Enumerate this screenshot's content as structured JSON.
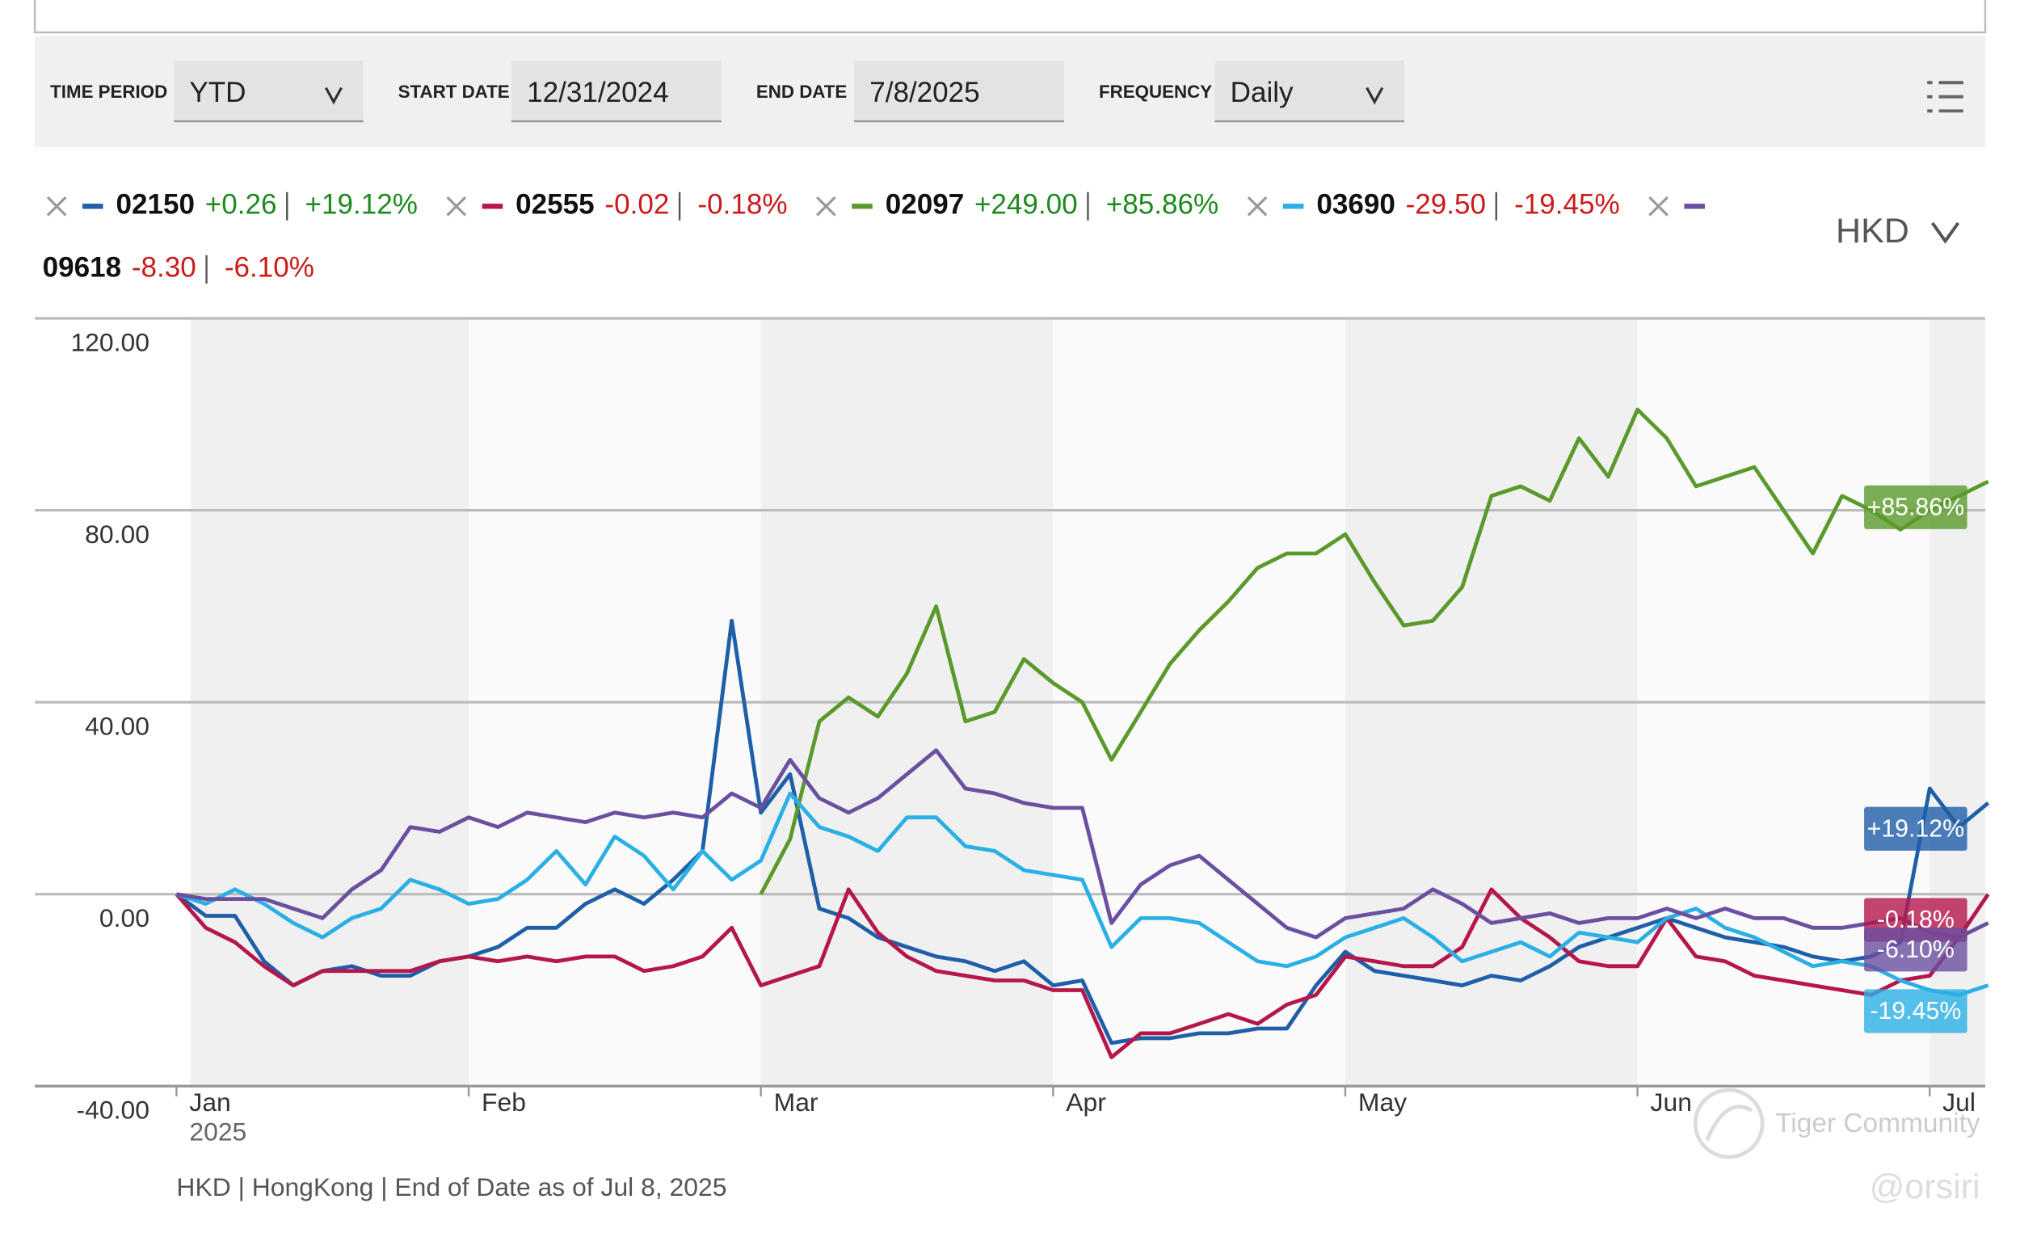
{
  "controls": [
    {
      "label": "TIME PERIOD",
      "value": "YTD"
    },
    {
      "label": "START DATE",
      "value": "12/31/2024"
    },
    {
      "label": "END DATE",
      "value": "7/8/2025"
    },
    {
      "label": "FREQUENCY",
      "value": "Daily"
    }
  ],
  "currency": "HKD",
  "footer": "HKD | HongKong | End of Date as of Jul 8, 2025",
  "watermark": [
    "Tiger Community",
    "@orsiri"
  ],
  "chart_data": {
    "type": "line",
    "x": [
      0,
      0.1,
      0.2,
      0.3,
      0.4,
      0.5,
      0.6,
      0.7,
      0.8,
      0.9,
      1,
      1.1,
      1.2,
      1.3,
      1.4,
      1.5,
      1.6,
      1.7,
      1.8,
      1.9,
      2,
      2.1,
      2.2,
      2.3,
      2.4,
      2.5,
      2.6,
      2.7,
      2.8,
      2.9,
      3,
      3.1,
      3.2,
      3.3,
      3.4,
      3.5,
      3.6,
      3.7,
      3.8,
      3.9,
      4,
      4.1,
      4.2,
      4.3,
      4.4,
      4.5,
      4.6,
      4.7,
      4.8,
      4.9,
      5,
      5.1,
      5.2,
      5.3,
      5.4,
      5.5,
      5.6,
      5.7,
      5.8,
      5.9,
      6,
      6.1,
      6.2
    ],
    "xlim": [
      0,
      6.19
    ],
    "xticks": [
      {
        "value": 0,
        "label": "Jan"
      },
      {
        "value": 1,
        "label": "Feb"
      },
      {
        "value": 2,
        "label": "Mar"
      },
      {
        "value": 3,
        "label": "Apr"
      },
      {
        "value": 4,
        "label": "May"
      },
      {
        "value": 5,
        "label": "Jun"
      },
      {
        "value": 6,
        "label": "Jul"
      }
    ],
    "year_label": "2025",
    "ylim": [
      -40,
      120
    ],
    "yticks": [
      {
        "value": -40,
        "label": "-40.00"
      },
      {
        "value": 0,
        "label": "0.00"
      },
      {
        "value": 40,
        "label": "40.00"
      },
      {
        "value": 80,
        "label": "80.00"
      },
      {
        "value": 120,
        "label": "120.00"
      }
    ],
    "grid": true,
    "series": [
      {
        "name": "02150",
        "color": "#1f5fa8",
        "change": "+0.26",
        "change_pct": "+19.12%",
        "change_color": "#1e8a1e",
        "values": [
          0,
          -4.5,
          -4.5,
          -14,
          -19,
          -16,
          -15,
          -17,
          -17,
          -14,
          -13,
          -11,
          -7,
          -7,
          -2,
          1,
          -2,
          3,
          9,
          57,
          17,
          25,
          -3,
          -5,
          -9,
          -11,
          -13,
          -14,
          -16,
          -14,
          -19,
          -18,
          -31,
          -30,
          -30,
          -29,
          -29,
          -28,
          -28,
          -19,
          -12,
          -16,
          -17,
          -18,
          -19,
          -17,
          -18,
          -15,
          -11,
          -9,
          -7,
          -5,
          -7,
          -9,
          -10,
          -11,
          -13,
          -14,
          -13,
          -10,
          22,
          14,
          19
        ]
      },
      {
        "name": "02555",
        "color": "#b5174b",
        "change": "-0.02",
        "change_pct": "-0.18%",
        "change_color": "#cc1a1a",
        "values": [
          0,
          -7,
          -10,
          -15,
          -19,
          -16,
          -16,
          -16,
          -16,
          -14,
          -13,
          -14,
          -13,
          -14,
          -13,
          -13,
          -16,
          -15,
          -13,
          -7,
          -19,
          -17,
          -15,
          1,
          -8,
          -13,
          -16,
          -17,
          -18,
          -18,
          -20,
          -20,
          -34,
          -29,
          -29,
          -27,
          -25,
          -27,
          -23,
          -21,
          -13,
          -14,
          -15,
          -15,
          -11,
          1,
          -5,
          -9,
          -14,
          -15,
          -15,
          -5,
          -13,
          -14,
          -17,
          -18,
          -19,
          -20,
          -21,
          -18,
          -17,
          -9,
          0
        ]
      },
      {
        "name": "02097",
        "color": "#5a9a2b",
        "change": "+249.00",
        "change_pct": "+85.86%",
        "change_color": "#1e8a1e",
        "values": [
          null,
          null,
          null,
          null,
          null,
          null,
          null,
          null,
          null,
          null,
          null,
          null,
          null,
          null,
          null,
          null,
          null,
          null,
          null,
          null,
          0,
          11.5,
          36,
          41,
          37,
          46,
          60,
          36,
          38,
          49,
          44,
          40,
          28,
          38,
          48,
          55,
          61,
          68,
          71,
          71,
          75,
          65,
          56,
          57,
          64,
          83,
          85,
          82,
          95,
          87,
          101,
          95,
          85,
          87,
          89,
          80,
          71,
          83,
          80,
          76,
          80,
          83,
          86
        ]
      },
      {
        "name": "03690",
        "color": "#2ab0e4",
        "change": "-29.50",
        "change_pct": "-19.45%",
        "change_color": "#cc1a1a",
        "values": [
          0,
          -2,
          1,
          -2,
          -6,
          -9,
          -5,
          -3,
          3,
          1,
          -2,
          -1,
          3,
          9,
          2,
          12,
          8,
          1,
          9,
          3,
          7,
          21,
          14,
          12,
          9,
          16,
          16,
          10,
          9,
          5,
          4,
          3,
          -11,
          -5,
          -5,
          -6,
          -10,
          -14,
          -15,
          -13,
          -9,
          -7,
          -5,
          -9,
          -14,
          -12,
          -10,
          -13,
          -8,
          -9,
          -10,
          -5,
          -3,
          -7,
          -9,
          -12,
          -15,
          -14,
          -15,
          -18,
          -20,
          -21,
          -19
        ]
      },
      {
        "name": "09618",
        "color": "#6b4fa0",
        "change": "-8.30",
        "change_pct": "-6.10%",
        "change_color": "#cc1a1a",
        "values": [
          0,
          -1,
          -1,
          -1,
          -3,
          -5,
          1,
          5,
          14,
          13,
          16,
          14,
          17,
          16,
          15,
          17,
          16,
          17,
          16,
          21,
          18,
          28,
          20,
          17,
          20,
          25,
          30,
          22,
          21,
          19,
          18,
          18,
          -6,
          2,
          6,
          8,
          3,
          -2,
          -7,
          -9,
          -5,
          -4,
          -3,
          1,
          -2,
          -6,
          -5,
          -4,
          -6,
          -5,
          -5,
          -3,
          -5,
          -3,
          -5,
          -5,
          -7,
          -7,
          -6,
          -5,
          -8,
          -9,
          -6
        ]
      }
    ]
  }
}
